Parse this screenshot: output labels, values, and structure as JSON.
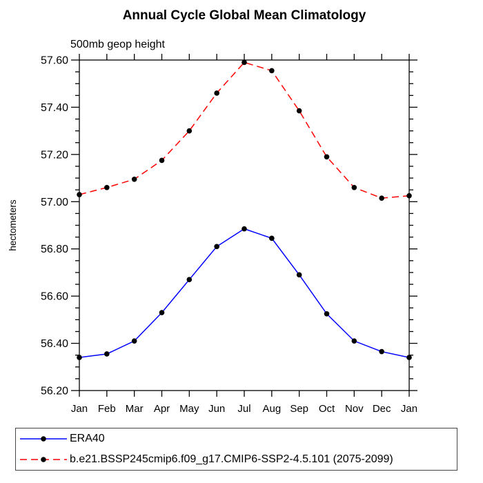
{
  "chart_data": {
    "type": "line",
    "title": "Annual Cycle Global Mean Climatology",
    "subtitle": "500mb geop height",
    "ylabel": "hectometers",
    "xlabel": "",
    "categories": [
      "Jan",
      "Feb",
      "Mar",
      "Apr",
      "May",
      "Jun",
      "Jul",
      "Aug",
      "Sep",
      "Oct",
      "Nov",
      "Dec",
      "Jan"
    ],
    "ylim": [
      56.2,
      57.6
    ],
    "ytick_values": [
      56.2,
      56.4,
      56.6,
      56.8,
      57.0,
      57.2,
      57.4,
      57.6
    ],
    "ytick_labels": [
      "56.20",
      "56.40",
      "56.60",
      "56.80",
      "57.00",
      "57.20",
      "57.40",
      "57.60"
    ],
    "y_minor_step": 0.05,
    "grid": false,
    "frame": "box-with-outward-ticks",
    "legend_position": "bottom-left-box",
    "axis_color": "#000000",
    "marker": "filled-circle",
    "marker_color": "#000000",
    "series": [
      {
        "name": "ERA40",
        "color": "#0000ff",
        "line_style": "solid",
        "values": [
          56.34,
          56.355,
          56.41,
          56.53,
          56.67,
          56.81,
          56.885,
          56.845,
          56.69,
          56.525,
          56.41,
          56.365,
          56.34
        ]
      },
      {
        "name": "b.e21.BSSP245cmip6.f09_g17.CMIP6-SSP2-4.5.101 (2075-2099)",
        "color": "#ff0000",
        "line_style": "dashed",
        "values": [
          57.03,
          57.06,
          57.095,
          57.175,
          57.3,
          57.46,
          57.59,
          57.555,
          57.385,
          57.19,
          57.06,
          57.015,
          57.025
        ]
      }
    ]
  }
}
